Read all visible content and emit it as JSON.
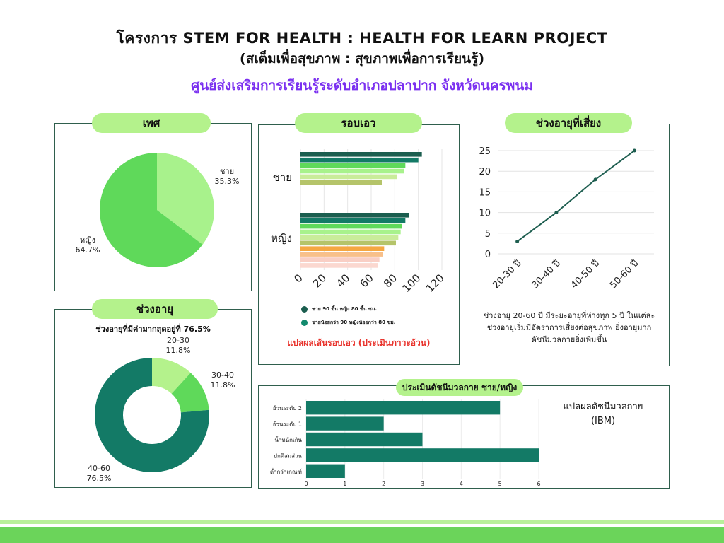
{
  "header": {
    "title_line1": "โครงการ STEM FOR HEALTH : HEALTH FOR LEARN PROJECT",
    "title_line2": "(สเต็มเพื่อสุขภาพ : สุขภาพเพื่อการเรียนรู้)",
    "title_line3": "ศูนย์ส่งเสริมการเรียนรู้ระดับอำเภอปลาปาก  จังหวัดนครพนม"
  },
  "gender_panel": {
    "pill": "เพศ",
    "chart_data": {
      "type": "pie",
      "slices": [
        {
          "label": "ชาย",
          "value": 35.3,
          "text": "35.3%",
          "color": "#a8f28c"
        },
        {
          "label": "หญิง",
          "value": 64.7,
          "text": "64.7%",
          "color": "#5fd95a"
        }
      ]
    }
  },
  "age_panel": {
    "pill": "ช่วงอายุ",
    "subtitle": "ช่วงอายุที่มีค่ามากสุดอยู่ที่ 76.5%",
    "chart_data": {
      "type": "pie",
      "donut": true,
      "slices": [
        {
          "label": "20-30",
          "value": 11.8,
          "text": "11.8%",
          "color": "#b4f28c"
        },
        {
          "label": "30-40",
          "value": 11.8,
          "text": "11.8%",
          "color": "#5fd95a"
        },
        {
          "label": "40-60",
          "value": 76.5,
          "text": "76.5%",
          "color": "#137a66"
        }
      ]
    }
  },
  "waist_panel": {
    "pill": "รอบเอว",
    "caption": "แปลผลเส้นรอบเอว (ประเมินภาวะอ้วน)",
    "legend": [
      {
        "text": "ชาย 90 ขึ้น หญิง 80 ขึ้น ซม.",
        "color": "#1b5e4f"
      },
      {
        "text": "ชายน้อยกว่า 90 หญิงน้อยกว่า 80 ซม.",
        "color": "#128a6e"
      }
    ],
    "chart_data": {
      "type": "bar",
      "orientation": "horizontal",
      "xlim": [
        0,
        120
      ],
      "xticks": [
        "0",
        "20",
        "40",
        "60",
        "80",
        "100",
        "120"
      ],
      "groups": [
        {
          "label": "ชาย",
          "values": [
            103,
            100,
            89,
            88,
            82,
            69
          ],
          "colors": [
            "#1b5e4f",
            "#137a66",
            "#5fd95a",
            "#a8f28c",
            "#c9ec9a",
            "#b5c46a"
          ]
        },
        {
          "label": "หญิง",
          "values": [
            92,
            89,
            86,
            85,
            83,
            81,
            71,
            70,
            67,
            66
          ],
          "colors": [
            "#1b5e4f",
            "#137a66",
            "#5fd95a",
            "#a8f28c",
            "#c9ec9a",
            "#b5c46a",
            "#f5a742",
            "#f8c08a",
            "#f9cfc5",
            "#fbd8d0"
          ]
        }
      ]
    }
  },
  "risk_panel": {
    "pill": "ช่วงอายุที่เสี่ยง",
    "description": "ช่วงอายุ 20-60 ปี มีระยะอายุที่ห่างทุก 5 ปี ในแต่ละช่วงอายุเริ่มมีอัตราการเสี่ยงต่อสุขภาพ ยิ่งอายุมากดัชนีมวลกายยิ่งเพิ่มขึ้น",
    "chart_data": {
      "type": "line",
      "categories": [
        "20-30 ปี",
        "30-40 ปี",
        "40-50 ปี",
        "50-60 ปี"
      ],
      "values": [
        3,
        10,
        18,
        25
      ],
      "ylim": [
        0,
        25
      ],
      "yticks": [
        "0",
        "5",
        "10",
        "15",
        "20",
        "25"
      ],
      "color": "#1e5e50"
    }
  },
  "bmi_panel": {
    "pill": "ประเมินดัชนีมวลกาย ชาย/หญิง",
    "note": "แปลผลดัชนีมวลกาย (IBM)",
    "chart_data": {
      "type": "bar",
      "orientation": "horizontal",
      "categories": [
        "อ้วนระดับ 2",
        "อ้วนระดับ 1",
        "น้ำหนักเกิน",
        "ปกติสมส่วน",
        "ต่ำกว่าเกณฑ์"
      ],
      "values": [
        5,
        2,
        3,
        6,
        1
      ],
      "xlim": [
        0,
        6
      ],
      "xticks": [
        "0",
        "1",
        "2",
        "3",
        "4",
        "5",
        "6"
      ],
      "color": "#137a66"
    }
  }
}
